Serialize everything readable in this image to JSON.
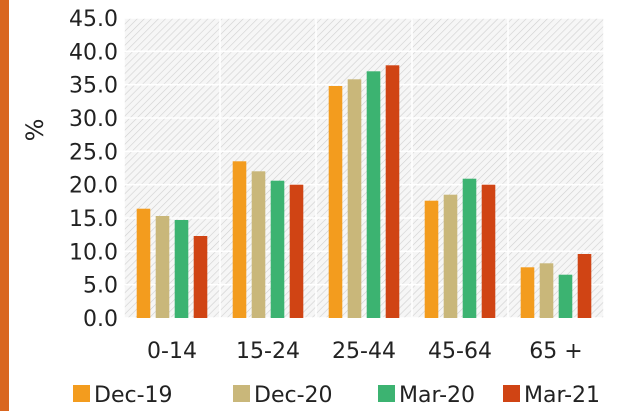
{
  "chart_data": {
    "type": "bar",
    "title": "",
    "xlabel": "",
    "ylabel": "%",
    "ylim": [
      0,
      45
    ],
    "ytick_step": 5,
    "ytick_labels": [
      "0.0",
      "5.0",
      "10.0",
      "15.0",
      "20.0",
      "25.0",
      "30.0",
      "35.0",
      "40.0",
      "45.0"
    ],
    "grid": true,
    "legend_position": "bottom",
    "categories": [
      "0-14",
      "15-24",
      "25-44",
      "45-64",
      "65 +"
    ],
    "series": [
      {
        "name": "Dec-19",
        "color": "#f39c1e",
        "values": [
          16.4,
          23.5,
          34.8,
          17.6,
          7.6
        ]
      },
      {
        "name": "Dec-20",
        "color": "#c9b77a",
        "values": [
          15.3,
          22.0,
          35.8,
          18.5,
          8.2
        ]
      },
      {
        "name": "Mar-20",
        "color": "#3cb371",
        "values": [
          14.7,
          20.6,
          37.0,
          20.9,
          6.5
        ]
      },
      {
        "name": "Mar-21",
        "color": "#d04414",
        "values": [
          12.3,
          20.0,
          37.9,
          20.0,
          9.6
        ]
      }
    ]
  }
}
